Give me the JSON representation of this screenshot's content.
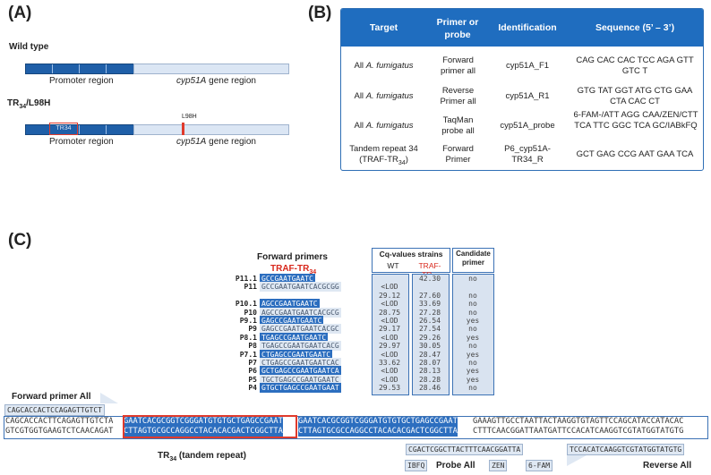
{
  "panelA": {
    "label": "(A)",
    "wild_type": "Wild type",
    "promoter": "Promoter region",
    "gene": "cyp51A",
    "gene_suffix": " gene region",
    "mutant_title": "TR",
    "mutant_sub": "34",
    "mutant_suffix": "/L98H",
    "tr34_label": "TR34",
    "l98h": "L98H",
    "promoter2": "Promoter region",
    "gene2": "cyp51A",
    "gene2_suffix": " gene region"
  },
  "panelB": {
    "label": "(B)",
    "headers": [
      "Target",
      "Primer or probe",
      "Identification",
      "Sequence (5’ – 3’)"
    ],
    "rows": [
      {
        "t1": "All ",
        "t2": "A. fumigatus",
        "t3": "",
        "p": "Forward primer all",
        "id": "cyp51A_F1",
        "seq": "CAG CAC CAC TCC AGA GTT GTC T"
      },
      {
        "t1": "All ",
        "t2": "A. fumigatus",
        "t3": "",
        "p": "Reverse Primer all",
        "id": "cyp51A_R1",
        "seq": "GTG TAT GGT ATG CTG GAA CTA CAC CT"
      },
      {
        "t1": "All ",
        "t2": "A. fumigatus",
        "t3": "",
        "p": "TaqMan probe all",
        "id": "cyp51A_probe",
        "seq": "6-FAM-/ATT AGG CAA/ZEN/CTT TCA TTC GGC TCA GC/IABkFQ"
      },
      {
        "t1": "Tandem repeat 34",
        "t2": "(TRAF-TR",
        "t3": "34",
        "p": "Forward Primer",
        "id": "P6_cyp51A-TR34_R",
        "seq": "GCT GAG CCG AAT GAA TCA"
      }
    ]
  },
  "panelC": {
    "label": "(C)",
    "fwd_title": "Forward primers",
    "fwd_sub": "TRAF-TR",
    "fwd_sub2": "34",
    "cq_title": "Cq-values strains",
    "col_wt": "WT",
    "col_tr": "TRAF-TR",
    "col_tr_sub": "34",
    "cand": "Candidate primer",
    "primers": [
      {
        "name": "P11.1",
        "seq": "GCCGAATGAATC",
        "dark": true,
        "wt": "",
        "tr": "42.30",
        "cand": "no"
      },
      {
        "name": "P11",
        "seq": "GCCGAATGAATCACGCGG",
        "dark": false,
        "wt": "<LOD",
        "tr": "",
        "cand": ""
      },
      {
        "name": "",
        "seq": "",
        "dark": false,
        "wt": "29.12",
        "tr": "27.60",
        "cand": "no"
      },
      {
        "name": "P10.1",
        "seq": "AGCCGAATGAATC",
        "dark": true,
        "wt": "<LOD",
        "tr": "33.69",
        "cand": "no"
      },
      {
        "name": "P10",
        "seq": "AGCCGAATGAATCACGCG",
        "dark": false,
        "wt": "28.75",
        "tr": "27.28",
        "cand": "no"
      },
      {
        "name": "P9.1",
        "seq": "GAGCCGAATGAATC",
        "dark": true,
        "wt": "<LOD",
        "tr": "26.54",
        "cand": "yes"
      },
      {
        "name": "P9",
        "seq": "GAGCCGAATGAATCACGC",
        "dark": false,
        "wt": "29.17",
        "tr": "27.54",
        "cand": "no"
      },
      {
        "name": "P8.1",
        "seq": "TGAGCCGAATGAATC",
        "dark": true,
        "wt": "<LOD",
        "tr": "29.26",
        "cand": "yes"
      },
      {
        "name": "P8",
        "seq": "TGAGCCGAATGAATCACG",
        "dark": false,
        "wt": "29.97",
        "tr": "30.05",
        "cand": "no"
      },
      {
        "name": "P7.1",
        "seq": "CTGAGCCGAATGAATC",
        "dark": true,
        "wt": "<LOD",
        "tr": "28.47",
        "cand": "yes"
      },
      {
        "name": "P7",
        "seq": "CTGAGCCGAATGAATCAC",
        "dark": false,
        "wt": "33.62",
        "tr": "28.07",
        "cand": "no"
      },
      {
        "name": "P6",
        "seq": "GCTGAGCCGAATGAATCA",
        "dark": true,
        "wt": "<LOD",
        "tr": "28.13",
        "cand": "yes"
      },
      {
        "name": "P5",
        "seq": "TGCTGAGCCGAATGAATC",
        "dark": false,
        "wt": "<LOD",
        "tr": "28.28",
        "cand": "yes"
      },
      {
        "name": "P4",
        "seq": "GTGCTGAGCCGAATGAAT",
        "dark": true,
        "wt": "29.53",
        "tr": "28.46",
        "cand": "no"
      }
    ],
    "fwd_all": "Forward primer All",
    "fwd_all_seq": "CAGCACCACTCCAGAGTTGTCT",
    "top_seq_a": "CAGCACCACTTCAGAGTTGTCTA",
    "top_seq_b": "GAATCACGCGGTCGGGATGTGTGCTGAGCCGAAT",
    "top_seq_c": "GAATCACGCGGTCGGGATGTGTGCTGAGCCGAAT",
    "top_seq_d": "GAAAGTTGCCTAATTACTAAGGTGTAGTTCCAGCATACCATACAC",
    "bot_seq_a": "GTCGTGGTGAAGTCTCAACAGAT",
    "bot_seq_b": "CTTAGTGCGCCAGGCCTACACACGACTCGGCTTA",
    "bot_seq_c": "CTTAGTGCGCCAGGCCTACACACGACTCGGCTTA",
    "bot_seq_d": "CTTTCAACGGATTAATGATTCCACATCAAGGTCGTATGGTATGTG",
    "tr_label": "TR",
    "tr_sub": "34",
    "tr_suffix": " (tandem repeat)",
    "probe_seq": "CGACTCGGCTTACTTTCAACGGATTA",
    "iabfq": "IBFQ",
    "zen": "ZEN",
    "fam": "6-FAM",
    "probe_all": "Probe All",
    "rev_seq": "TCCACATCAAGGTCGTATGGTATGTG",
    "rev_all": "Reverse All"
  }
}
